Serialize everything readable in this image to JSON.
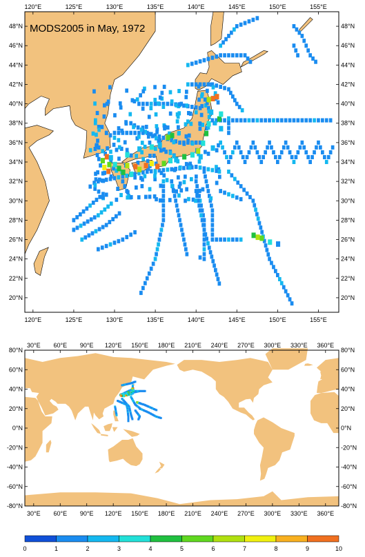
{
  "title": "MODS2005 in May, 1972",
  "colors": {
    "land": "#f2c27e",
    "ocean": "#ffffff",
    "frame": "#000000"
  },
  "map_regional": {
    "lon_range": [
      119,
      157.5
    ],
    "lat_range": [
      18.5,
      49.5
    ],
    "lon_ticks": [
      "120°E",
      "125°E",
      "130°E",
      "135°E",
      "140°E",
      "145°E",
      "150°E",
      "155°E"
    ],
    "lat_ticks": [
      "20°N",
      "22°N",
      "24°N",
      "26°N",
      "28°N",
      "30°N",
      "32°N",
      "34°N",
      "36°N",
      "38°N",
      "40°N",
      "42°N",
      "44°N",
      "46°N",
      "48°N"
    ]
  },
  "map_global": {
    "lon_range": [
      20,
      375
    ],
    "lat_range": [
      -80,
      80
    ],
    "lon_ticks": [
      "30°E",
      "60°E",
      "90°E",
      "120°E",
      "150°E",
      "180°E",
      "210°E",
      "240°E",
      "270°E",
      "300°E",
      "330°E",
      "360°E"
    ],
    "lat_ticks": [
      "80°N",
      "60°N",
      "40°N",
      "20°N",
      "0°N",
      "-20°N",
      "-40°N",
      "-60°N",
      "-80°N"
    ]
  },
  "colorbar": {
    "labels": [
      "0",
      "1",
      "2",
      "3",
      "4",
      "5",
      "6",
      "7",
      "8",
      "9",
      "10"
    ],
    "colors": [
      "#1050d8",
      "#1a8cf0",
      "#14b8f0",
      "#22e0d8",
      "#20c040",
      "#60d820",
      "#b0e010",
      "#f0f010",
      "#f8b020",
      "#f07020"
    ]
  },
  "chart_data": {
    "type": "heatmap",
    "title": "MODS2005 in May, 1972",
    "value_range": [
      0,
      10
    ],
    "observations_regional": [
      [
        128.5,
        34.2,
        5
      ],
      [
        129.0,
        34.6,
        9
      ],
      [
        129.3,
        33.8,
        5
      ],
      [
        130.0,
        33.8,
        3
      ],
      [
        130.5,
        33.4,
        4
      ],
      [
        131.5,
        33.7,
        6
      ],
      [
        132.5,
        33.6,
        9
      ],
      [
        133.0,
        33.3,
        6
      ],
      [
        133.8,
        33.7,
        9
      ],
      [
        134.5,
        33.9,
        7
      ],
      [
        135.2,
        33.6,
        9
      ],
      [
        136.0,
        33.9,
        5
      ],
      [
        136.8,
        34.2,
        3
      ],
      [
        137.5,
        34.3,
        2
      ],
      [
        138.5,
        34.6,
        4
      ],
      [
        139.5,
        34.8,
        3
      ],
      [
        140.2,
        35.2,
        6
      ],
      [
        140.8,
        36.0,
        3
      ],
      [
        141.2,
        37.0,
        4
      ],
      [
        141.5,
        38.0,
        3
      ],
      [
        141.8,
        39.2,
        2
      ],
      [
        142.0,
        40.6,
        9
      ],
      [
        142.5,
        40.8,
        9
      ],
      [
        141.5,
        40.5,
        6
      ],
      [
        137.0,
        36.8,
        4
      ],
      [
        136.5,
        36.6,
        5
      ],
      [
        135.5,
        35.8,
        2
      ],
      [
        134.5,
        35.6,
        3
      ],
      [
        133.0,
        35.4,
        2
      ],
      [
        131.5,
        34.8,
        3
      ],
      [
        147.0,
        26.5,
        4
      ],
      [
        148.0,
        26.2,
        5
      ],
      [
        147.5,
        26.3,
        6
      ],
      [
        149.0,
        25.8,
        3
      ],
      [
        150.0,
        25.6,
        1
      ],
      [
        129.5,
        34.5,
        2
      ],
      [
        128.7,
        33.5,
        7
      ],
      [
        129.2,
        33.1,
        9
      ],
      [
        131.0,
        33.0,
        4
      ],
      [
        132.0,
        32.8,
        3
      ],
      [
        140.5,
        34.6,
        2
      ],
      [
        142.0,
        35.5,
        2
      ],
      [
        143.0,
        37.5,
        2
      ],
      [
        142.8,
        38.5,
        4
      ],
      [
        143.0,
        39.0,
        3
      ]
    ]
  }
}
